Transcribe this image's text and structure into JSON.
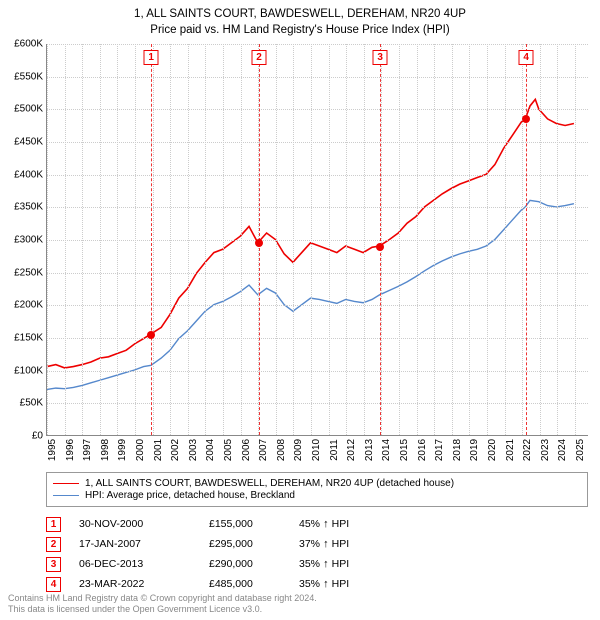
{
  "title": {
    "line1": "1, ALL SAINTS COURT, BAWDESWELL, DEREHAM, NR20 4UP",
    "line2": "Price paid vs. HM Land Registry's House Price Index (HPI)"
  },
  "chart": {
    "type": "line",
    "background_color": "#ffffff",
    "grid_color": "#cccccc",
    "x_min": 1995,
    "x_max": 2025.8,
    "x_ticks": [
      1995,
      1996,
      1997,
      1998,
      1999,
      2000,
      2001,
      2002,
      2003,
      2004,
      2005,
      2006,
      2007,
      2008,
      2009,
      2010,
      2011,
      2012,
      2013,
      2014,
      2015,
      2016,
      2017,
      2018,
      2019,
      2020,
      2021,
      2022,
      2023,
      2024,
      2025
    ],
    "y_min": 0,
    "y_max": 600000,
    "y_ticks": [
      {
        "v": 0,
        "label": "£0"
      },
      {
        "v": 50000,
        "label": "£50K"
      },
      {
        "v": 100000,
        "label": "£100K"
      },
      {
        "v": 150000,
        "label": "£150K"
      },
      {
        "v": 200000,
        "label": "£200K"
      },
      {
        "v": 250000,
        "label": "£250K"
      },
      {
        "v": 300000,
        "label": "£300K"
      },
      {
        "v": 350000,
        "label": "£350K"
      },
      {
        "v": 400000,
        "label": "£400K"
      },
      {
        "v": 450000,
        "label": "£450K"
      },
      {
        "v": 500000,
        "label": "£500K"
      },
      {
        "v": 550000,
        "label": "£550K"
      },
      {
        "v": 600000,
        "label": "£600K"
      }
    ],
    "title_fontsize": 11.5,
    "axis_fontsize": 10,
    "series": [
      {
        "name": "property",
        "label": "1, ALL SAINTS COURT, BAWDESWELL, DEREHAM, NR20 4UP (detached house)",
        "color": "#ee0000",
        "line_width": 1.6,
        "data": [
          [
            1995.0,
            105000
          ],
          [
            1995.5,
            108000
          ],
          [
            1996.0,
            103000
          ],
          [
            1996.5,
            105000
          ],
          [
            1997.0,
            108000
          ],
          [
            1997.5,
            112000
          ],
          [
            1998.0,
            118000
          ],
          [
            1998.5,
            120000
          ],
          [
            1999.0,
            125000
          ],
          [
            1999.5,
            130000
          ],
          [
            2000.0,
            140000
          ],
          [
            2000.5,
            148000
          ],
          [
            2000.92,
            155000
          ],
          [
            2001.5,
            165000
          ],
          [
            2002.0,
            185000
          ],
          [
            2002.5,
            210000
          ],
          [
            2003.0,
            225000
          ],
          [
            2003.5,
            248000
          ],
          [
            2004.0,
            265000
          ],
          [
            2004.5,
            280000
          ],
          [
            2005.0,
            285000
          ],
          [
            2005.5,
            295000
          ],
          [
            2006.0,
            305000
          ],
          [
            2006.5,
            320000
          ],
          [
            2007.0,
            295000
          ],
          [
            2007.5,
            310000
          ],
          [
            2008.0,
            300000
          ],
          [
            2008.5,
            278000
          ],
          [
            2009.0,
            265000
          ],
          [
            2009.5,
            280000
          ],
          [
            2010.0,
            295000
          ],
          [
            2010.5,
            290000
          ],
          [
            2011.0,
            285000
          ],
          [
            2011.5,
            280000
          ],
          [
            2012.0,
            290000
          ],
          [
            2012.5,
            285000
          ],
          [
            2013.0,
            280000
          ],
          [
            2013.5,
            288000
          ],
          [
            2013.93,
            290000
          ],
          [
            2014.5,
            300000
          ],
          [
            2015.0,
            310000
          ],
          [
            2015.5,
            325000
          ],
          [
            2016.0,
            335000
          ],
          [
            2016.5,
            350000
          ],
          [
            2017.0,
            360000
          ],
          [
            2017.5,
            370000
          ],
          [
            2018.0,
            378000
          ],
          [
            2018.5,
            385000
          ],
          [
            2019.0,
            390000
          ],
          [
            2019.5,
            395000
          ],
          [
            2020.0,
            400000
          ],
          [
            2020.5,
            415000
          ],
          [
            2021.0,
            440000
          ],
          [
            2021.5,
            460000
          ],
          [
            2022.0,
            480000
          ],
          [
            2022.23,
            485000
          ],
          [
            2022.5,
            505000
          ],
          [
            2022.8,
            515000
          ],
          [
            2023.0,
            500000
          ],
          [
            2023.5,
            485000
          ],
          [
            2024.0,
            478000
          ],
          [
            2024.5,
            475000
          ],
          [
            2025.0,
            478000
          ]
        ]
      },
      {
        "name": "hpi",
        "label": "HPI: Average price, detached house, Breckland",
        "color": "#5588cc",
        "line_width": 1.4,
        "data": [
          [
            1995.0,
            70000
          ],
          [
            1995.5,
            72000
          ],
          [
            1996.0,
            71000
          ],
          [
            1996.5,
            73000
          ],
          [
            1997.0,
            76000
          ],
          [
            1997.5,
            80000
          ],
          [
            1998.0,
            84000
          ],
          [
            1998.5,
            88000
          ],
          [
            1999.0,
            92000
          ],
          [
            1999.5,
            96000
          ],
          [
            2000.0,
            100000
          ],
          [
            2000.5,
            105000
          ],
          [
            2000.92,
            107000
          ],
          [
            2001.5,
            118000
          ],
          [
            2002.0,
            130000
          ],
          [
            2002.5,
            148000
          ],
          [
            2003.0,
            160000
          ],
          [
            2003.5,
            175000
          ],
          [
            2004.0,
            190000
          ],
          [
            2004.5,
            200000
          ],
          [
            2005.0,
            205000
          ],
          [
            2005.5,
            212000
          ],
          [
            2006.0,
            220000
          ],
          [
            2006.5,
            230000
          ],
          [
            2007.0,
            215000
          ],
          [
            2007.5,
            225000
          ],
          [
            2008.0,
            218000
          ],
          [
            2008.5,
            200000
          ],
          [
            2009.0,
            190000
          ],
          [
            2009.5,
            200000
          ],
          [
            2010.0,
            210000
          ],
          [
            2010.5,
            208000
          ],
          [
            2011.0,
            205000
          ],
          [
            2011.5,
            202000
          ],
          [
            2012.0,
            208000
          ],
          [
            2012.5,
            205000
          ],
          [
            2013.0,
            203000
          ],
          [
            2013.5,
            208000
          ],
          [
            2013.93,
            215000
          ],
          [
            2014.5,
            222000
          ],
          [
            2015.0,
            228000
          ],
          [
            2015.5,
            235000
          ],
          [
            2016.0,
            243000
          ],
          [
            2016.5,
            252000
          ],
          [
            2017.0,
            260000
          ],
          [
            2017.5,
            267000
          ],
          [
            2018.0,
            273000
          ],
          [
            2018.5,
            278000
          ],
          [
            2019.0,
            282000
          ],
          [
            2019.5,
            285000
          ],
          [
            2020.0,
            290000
          ],
          [
            2020.5,
            300000
          ],
          [
            2021.0,
            315000
          ],
          [
            2021.5,
            330000
          ],
          [
            2022.0,
            345000
          ],
          [
            2022.23,
            350000
          ],
          [
            2022.5,
            360000
          ],
          [
            2023.0,
            358000
          ],
          [
            2023.5,
            352000
          ],
          [
            2024.0,
            350000
          ],
          [
            2024.5,
            352000
          ],
          [
            2025.0,
            355000
          ]
        ]
      }
    ],
    "markers": [
      {
        "n": "1",
        "x": 2000.92,
        "y": 155000
      },
      {
        "n": "2",
        "x": 2007.05,
        "y": 295000
      },
      {
        "n": "3",
        "x": 2013.93,
        "y": 290000
      },
      {
        "n": "4",
        "x": 2022.23,
        "y": 485000
      }
    ]
  },
  "legend": {
    "items": [
      {
        "color": "#ee0000",
        "width": 1.6,
        "label": "1, ALL SAINTS COURT, BAWDESWELL, DEREHAM, NR20 4UP (detached house)"
      },
      {
        "color": "#5588cc",
        "width": 1.4,
        "label": "HPI: Average price, detached house, Breckland"
      }
    ]
  },
  "transactions": [
    {
      "n": "1",
      "date": "30-NOV-2000",
      "price": "£155,000",
      "delta": "45%",
      "note": "HPI"
    },
    {
      "n": "2",
      "date": "17-JAN-2007",
      "price": "£295,000",
      "delta": "37%",
      "note": "HPI"
    },
    {
      "n": "3",
      "date": "06-DEC-2013",
      "price": "£290,000",
      "delta": "35%",
      "note": "HPI"
    },
    {
      "n": "4",
      "date": "23-MAR-2022",
      "price": "£485,000",
      "delta": "35%",
      "note": "HPI"
    }
  ],
  "footer": {
    "line1": "Contains HM Land Registry data © Crown copyright and database right 2024.",
    "line2": "This data is licensed under the Open Government Licence v3.0."
  },
  "colors": {
    "marker_border": "#ee0000",
    "footer_text": "#888888"
  }
}
